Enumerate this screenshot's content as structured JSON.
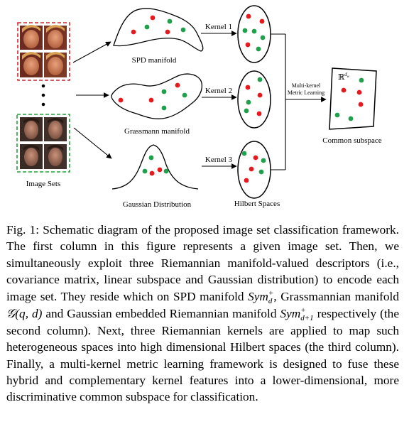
{
  "figure": {
    "image_sets_label": "Image Sets",
    "manifold_labels": [
      "SPD manifold",
      "Grassmann manifold",
      "Gaussian Distribution"
    ],
    "kernel_labels": [
      "Kernel 1",
      "Kernel 2",
      "Kernel 3"
    ],
    "hilbert_label": "Hilbert Spaces",
    "mkml_label_line1": "Multi-kernel",
    "mkml_label_line2": "Metric Learning",
    "common_space_label": "Common subspace",
    "common_space_symbol": "ℝ",
    "common_space_superscript": "d",
    "common_space_subscript": "w",
    "dot_colors": {
      "red": "#e8191c",
      "green": "#21a04b"
    },
    "face_set_border_colors": {
      "top": "#d7262a",
      "bottom": "#2f9a3e"
    }
  },
  "caption": {
    "label": "Fig. 1:",
    "part1": " Schematic diagram of the proposed image set classification framework. The first column in this figure represents a given image set. Then, we simultaneously exploit three Riemannian manifold-valued descriptors (i.e., covariance matrix, linear subspace and Gaussian distribution) to encode each image set. They reside which on SPD manifold ",
    "sym1_base": "Sym",
    "sym1_sup": "+",
    "sym1_sub": "d",
    "part2": ", Grassmannian manifold ",
    "grassmann_math": "𝒢(q, d)",
    "part3": " and Gaussian embedded Riemannian manifold ",
    "sym2_base": "Sym",
    "sym2_sup": "+",
    "sym2_sub": "d+1",
    "part4": " respectively (the second column). Next, three Riemannian kernels are applied to map such heterogeneous spaces into high dimensional Hilbert spaces (the third column). Finally, a multi-kernel metric learning framework is designed to fuse these hybrid and complementary kernel features into a lower-dimensional, more discriminative common subspace for classification."
  }
}
